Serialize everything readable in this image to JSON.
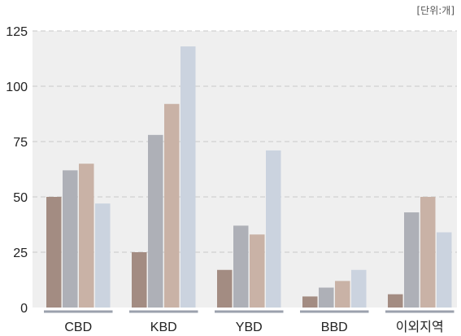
{
  "unit_label": "[단위:개]",
  "colors": {
    "plot_background": "#efefef",
    "gridline": "#c8c8c8",
    "category_underline": "#9ba1ad",
    "series": [
      "#a38c82",
      "#aeb0b7",
      "#c9b2a6",
      "#cbd3df"
    ]
  },
  "chart_data": {
    "type": "bar",
    "categories": [
      "CBD",
      "KBD",
      "YBD",
      "BBD",
      "이외지역"
    ],
    "series": [
      {
        "values": [
          50,
          25,
          17,
          5,
          6
        ]
      },
      {
        "values": [
          62,
          78,
          37,
          9,
          43
        ]
      },
      {
        "values": [
          65,
          92,
          33,
          12,
          50
        ]
      },
      {
        "values": [
          47,
          118,
          71,
          17,
          34
        ]
      }
    ],
    "ylim": [
      0,
      125
    ],
    "yticks": [
      0,
      25,
      50,
      75,
      100,
      125
    ],
    "xlabel": "",
    "ylabel": "",
    "grid": true,
    "legend": "none"
  }
}
